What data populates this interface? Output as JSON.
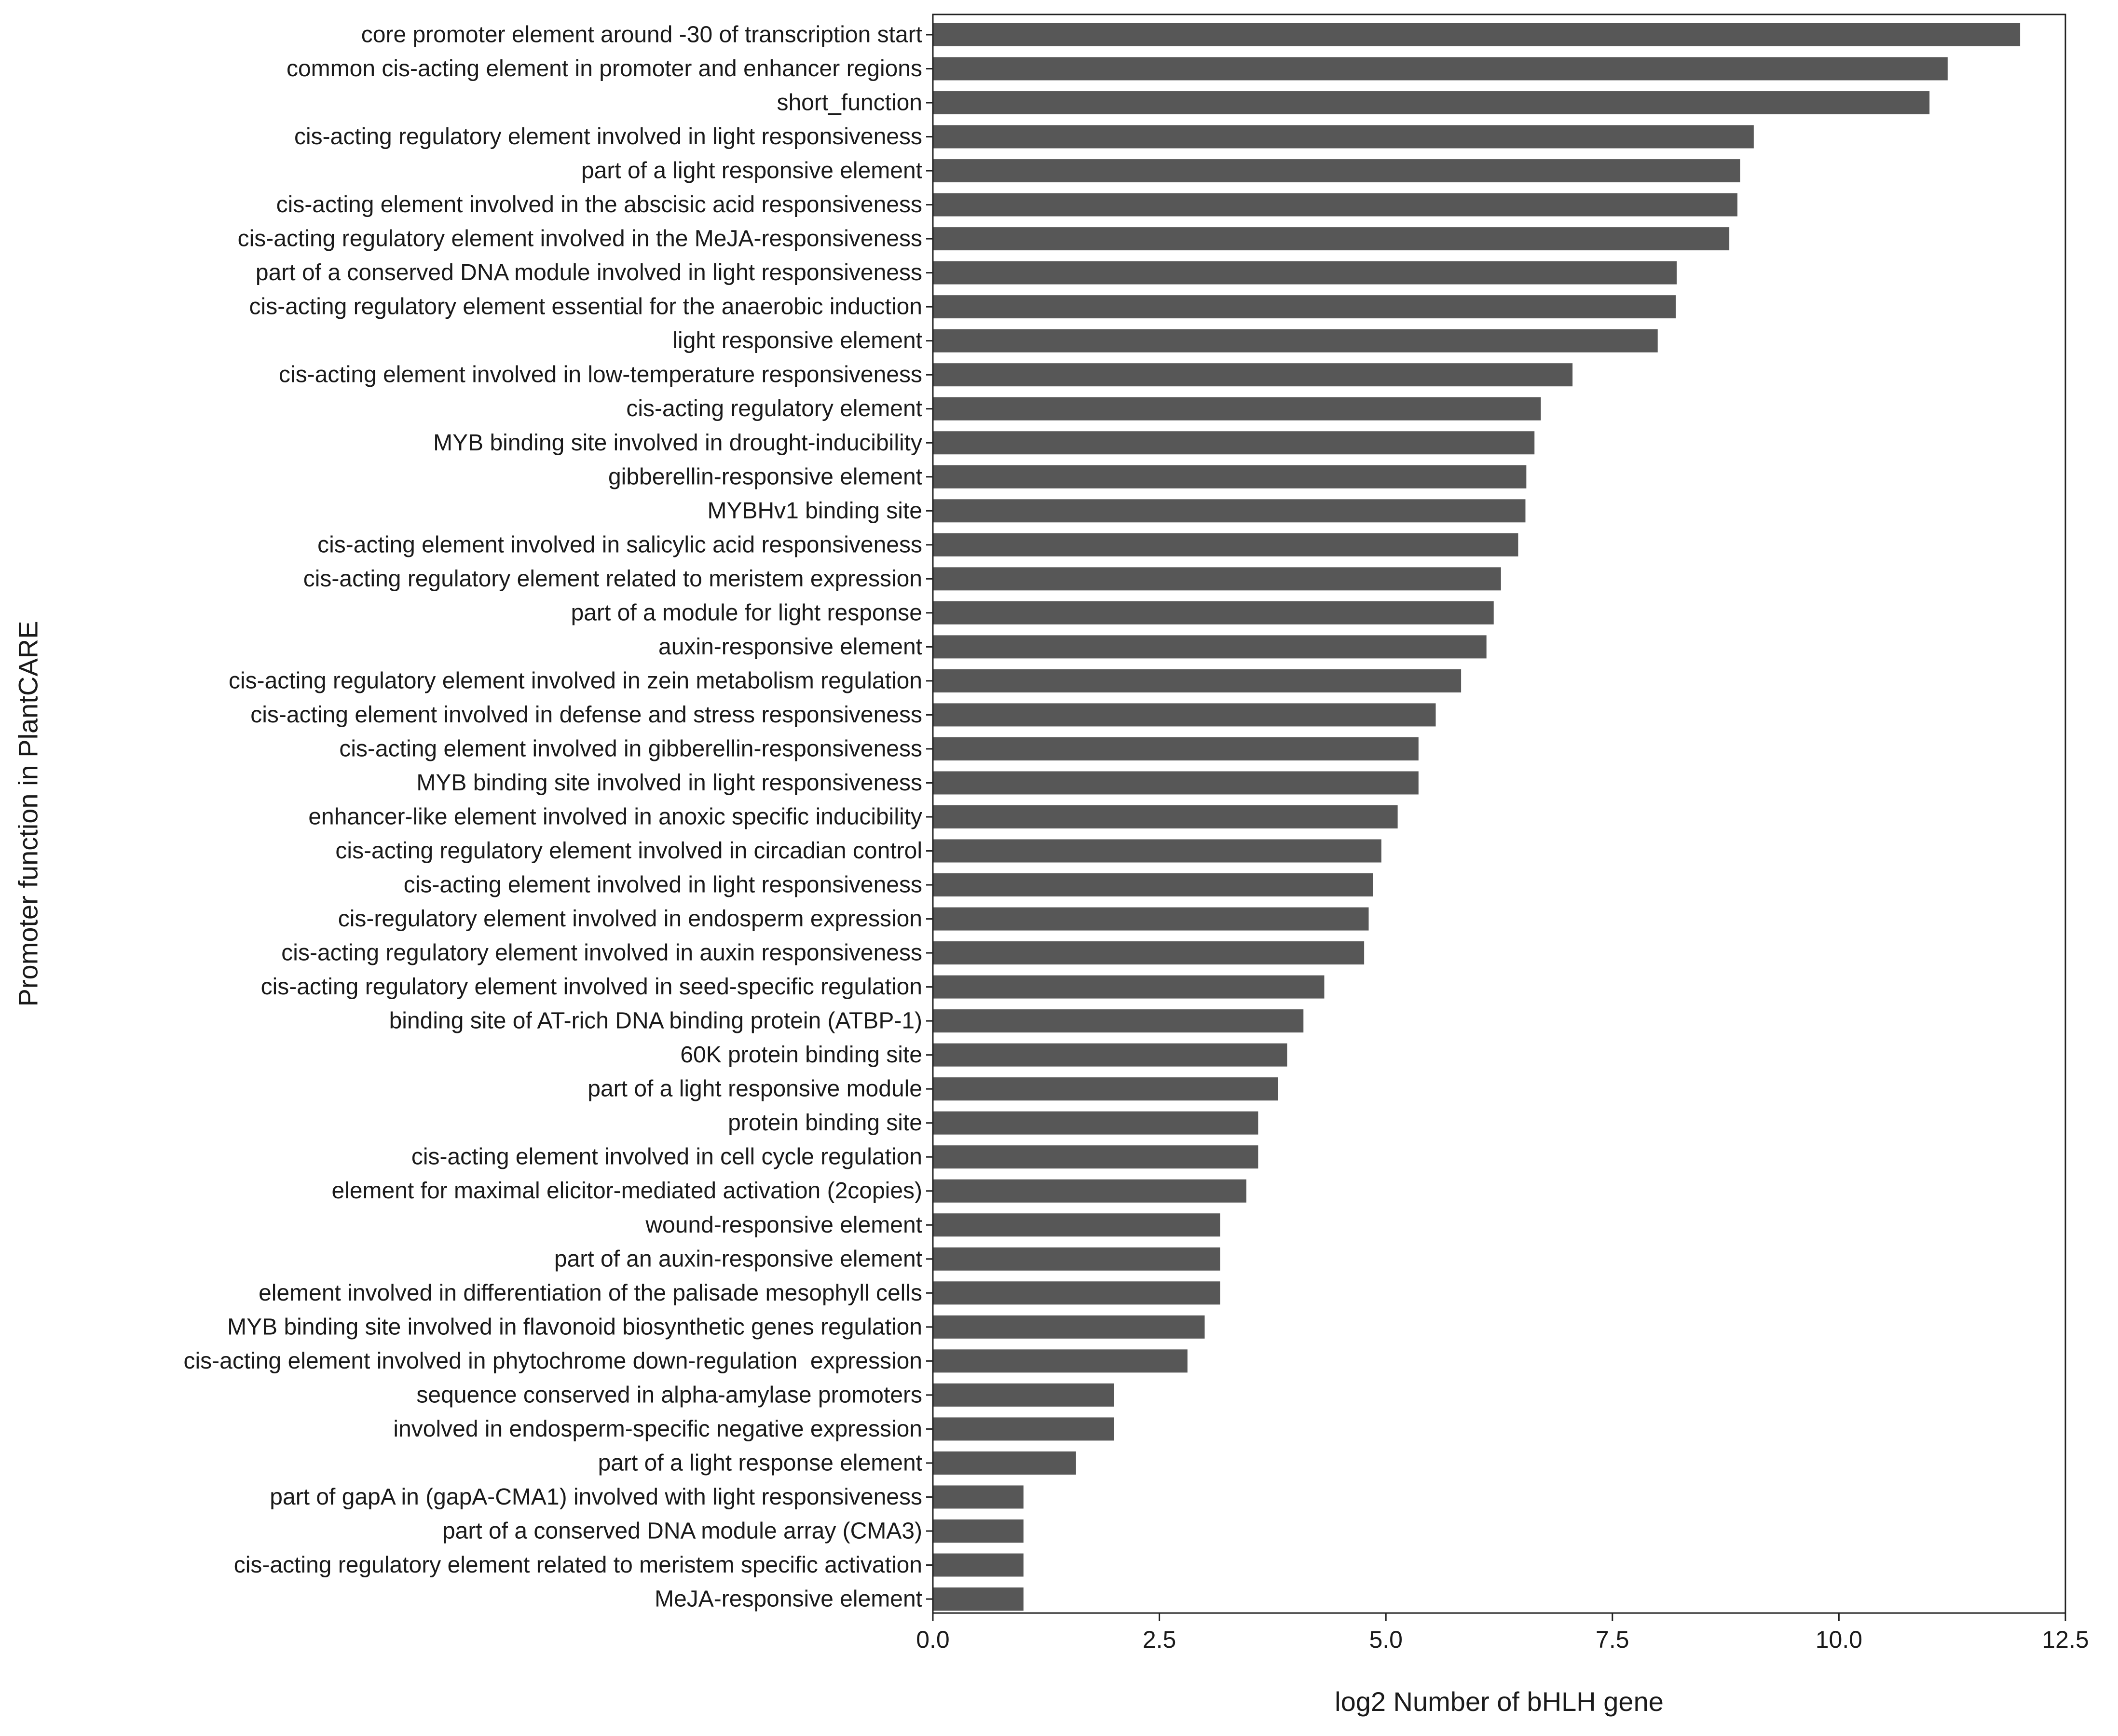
{
  "chart_data": {
    "type": "bar",
    "orientation": "horizontal",
    "xlabel": "log2 Number of bHLH gene",
    "ylabel": "Promoter function in PlantCARE",
    "xlim": [
      0,
      12.5
    ],
    "xticks": [
      "0.0",
      "2.5",
      "5.0",
      "7.5",
      "10.0",
      "12.5"
    ],
    "xtick_values": [
      0,
      2.5,
      5,
      7.5,
      10,
      12.5
    ],
    "bar_color": "#575757",
    "grid": false,
    "categories": [
      "core promoter element around -30 of transcription start",
      "common cis-acting element in promoter and enhancer regions",
      "short_function",
      "cis-acting regulatory element involved in light responsiveness",
      "part of a light responsive element",
      "cis-acting element involved in the abscisic acid responsiveness",
      "cis-acting regulatory element involved in the MeJA-responsiveness",
      "part of a conserved DNA module involved in light responsiveness",
      "cis-acting regulatory element essential for the anaerobic induction",
      "light responsive element",
      "cis-acting element involved in low-temperature responsiveness",
      "cis-acting regulatory element",
      "MYB binding site involved in drought-inducibility",
      "gibberellin-responsive element",
      "MYBHv1 binding site",
      "cis-acting element involved in salicylic acid responsiveness",
      "cis-acting regulatory element related to meristem expression",
      "part of a module for light response",
      "auxin-responsive element",
      "cis-acting regulatory element involved in zein metabolism regulation",
      "cis-acting element involved in defense and stress responsiveness",
      "cis-acting element involved in gibberellin-responsiveness",
      "MYB binding site involved in light responsiveness",
      "enhancer-like element involved in anoxic specific inducibility",
      "cis-acting regulatory element involved in circadian control",
      "cis-acting element involved in light responsiveness",
      "cis-regulatory element involved in endosperm expression",
      "cis-acting regulatory element involved in auxin responsiveness",
      "cis-acting regulatory element involved in seed-specific regulation",
      "binding site of AT-rich DNA binding protein (ATBP-1)",
      "60K protein binding site",
      "part of a light responsive module",
      "protein binding site",
      "cis-acting element involved in cell cycle regulation",
      "element for maximal elicitor-mediated activation (2copies)",
      "wound-responsive element",
      "part of an auxin-responsive element",
      "element involved in differentiation of the palisade mesophyll cells",
      "MYB binding site involved in flavonoid biosynthetic genes regulation",
      "cis-acting element involved in phytochrome down-regulation  expression",
      "sequence conserved in alpha-amylase promoters",
      "involved in endosperm-specific negative expression",
      "part of a light response element",
      "part of gapA in (gapA-CMA1) involved with light responsiveness",
      "part of a conserved DNA module array (CMA3)",
      "cis-acting regulatory element related to meristem specific activation",
      "MeJA-responsive element"
    ],
    "values": [
      12.0,
      11.2,
      11.0,
      9.06,
      8.91,
      8.88,
      8.79,
      8.21,
      8.2,
      8.0,
      7.06,
      6.71,
      6.64,
      6.55,
      6.54,
      6.46,
      6.27,
      6.19,
      6.11,
      5.83,
      5.55,
      5.36,
      5.36,
      5.13,
      4.95,
      4.86,
      4.81,
      4.76,
      4.32,
      4.09,
      3.91,
      3.81,
      3.59,
      3.59,
      3.46,
      3.17,
      3.17,
      3.17,
      3.0,
      2.81,
      2.0,
      2.0,
      1.58,
      1.0,
      1.0,
      1.0,
      1.0
    ]
  }
}
